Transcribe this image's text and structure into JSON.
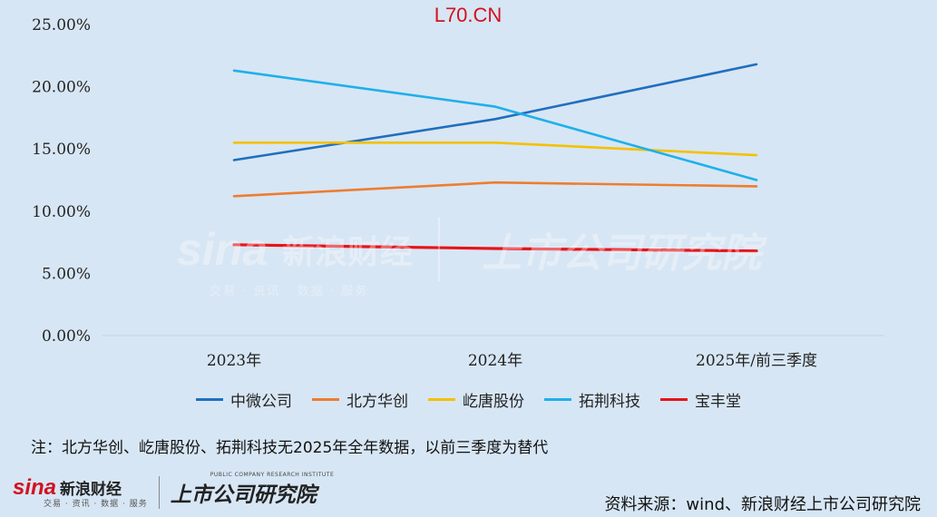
{
  "chart_data": {
    "type": "line",
    "title": "L70.CN",
    "categories": [
      "2023年",
      "2024年",
      "2025年/前三季度"
    ],
    "y_tick_labels": [
      "0.00%",
      "5.00%",
      "10.00%",
      "15.00%",
      "20.00%",
      "25.00%"
    ],
    "ylim": [
      0,
      25
    ],
    "grid": false,
    "legend_position": "bottom",
    "series": [
      {
        "name": "中微公司",
        "color": "#1f6fbf",
        "values": [
          14.1,
          17.4,
          21.8
        ]
      },
      {
        "name": "北方华创",
        "color": "#ed7d31",
        "values": [
          11.2,
          12.3,
          12.0
        ]
      },
      {
        "name": "屹唐股份",
        "color": "#f5c000",
        "values": [
          15.5,
          15.5,
          14.5
        ]
      },
      {
        "name": "拓荆科技",
        "color": "#1fb0ea",
        "values": [
          21.3,
          18.4,
          12.5
        ]
      },
      {
        "name": "宝丰堂",
        "color": "#e8131a",
        "values": [
          7.3,
          7.0,
          6.8
        ]
      }
    ]
  },
  "note": "注：北方华创、屹唐股份、拓荆科技无2025年全年数据，以前三季度为替代",
  "source": "资料来源：wind、新浪财经上市公司研究院",
  "brand": {
    "sina_word": "sina",
    "sina_cn": "新浪财经",
    "sina_sub": "交易 · 资讯 · 数据 · 服务",
    "institute_cn": "上市公司研究院",
    "institute_en": "PUBLIC COMPANY RESEARCH INSTITUTE"
  }
}
